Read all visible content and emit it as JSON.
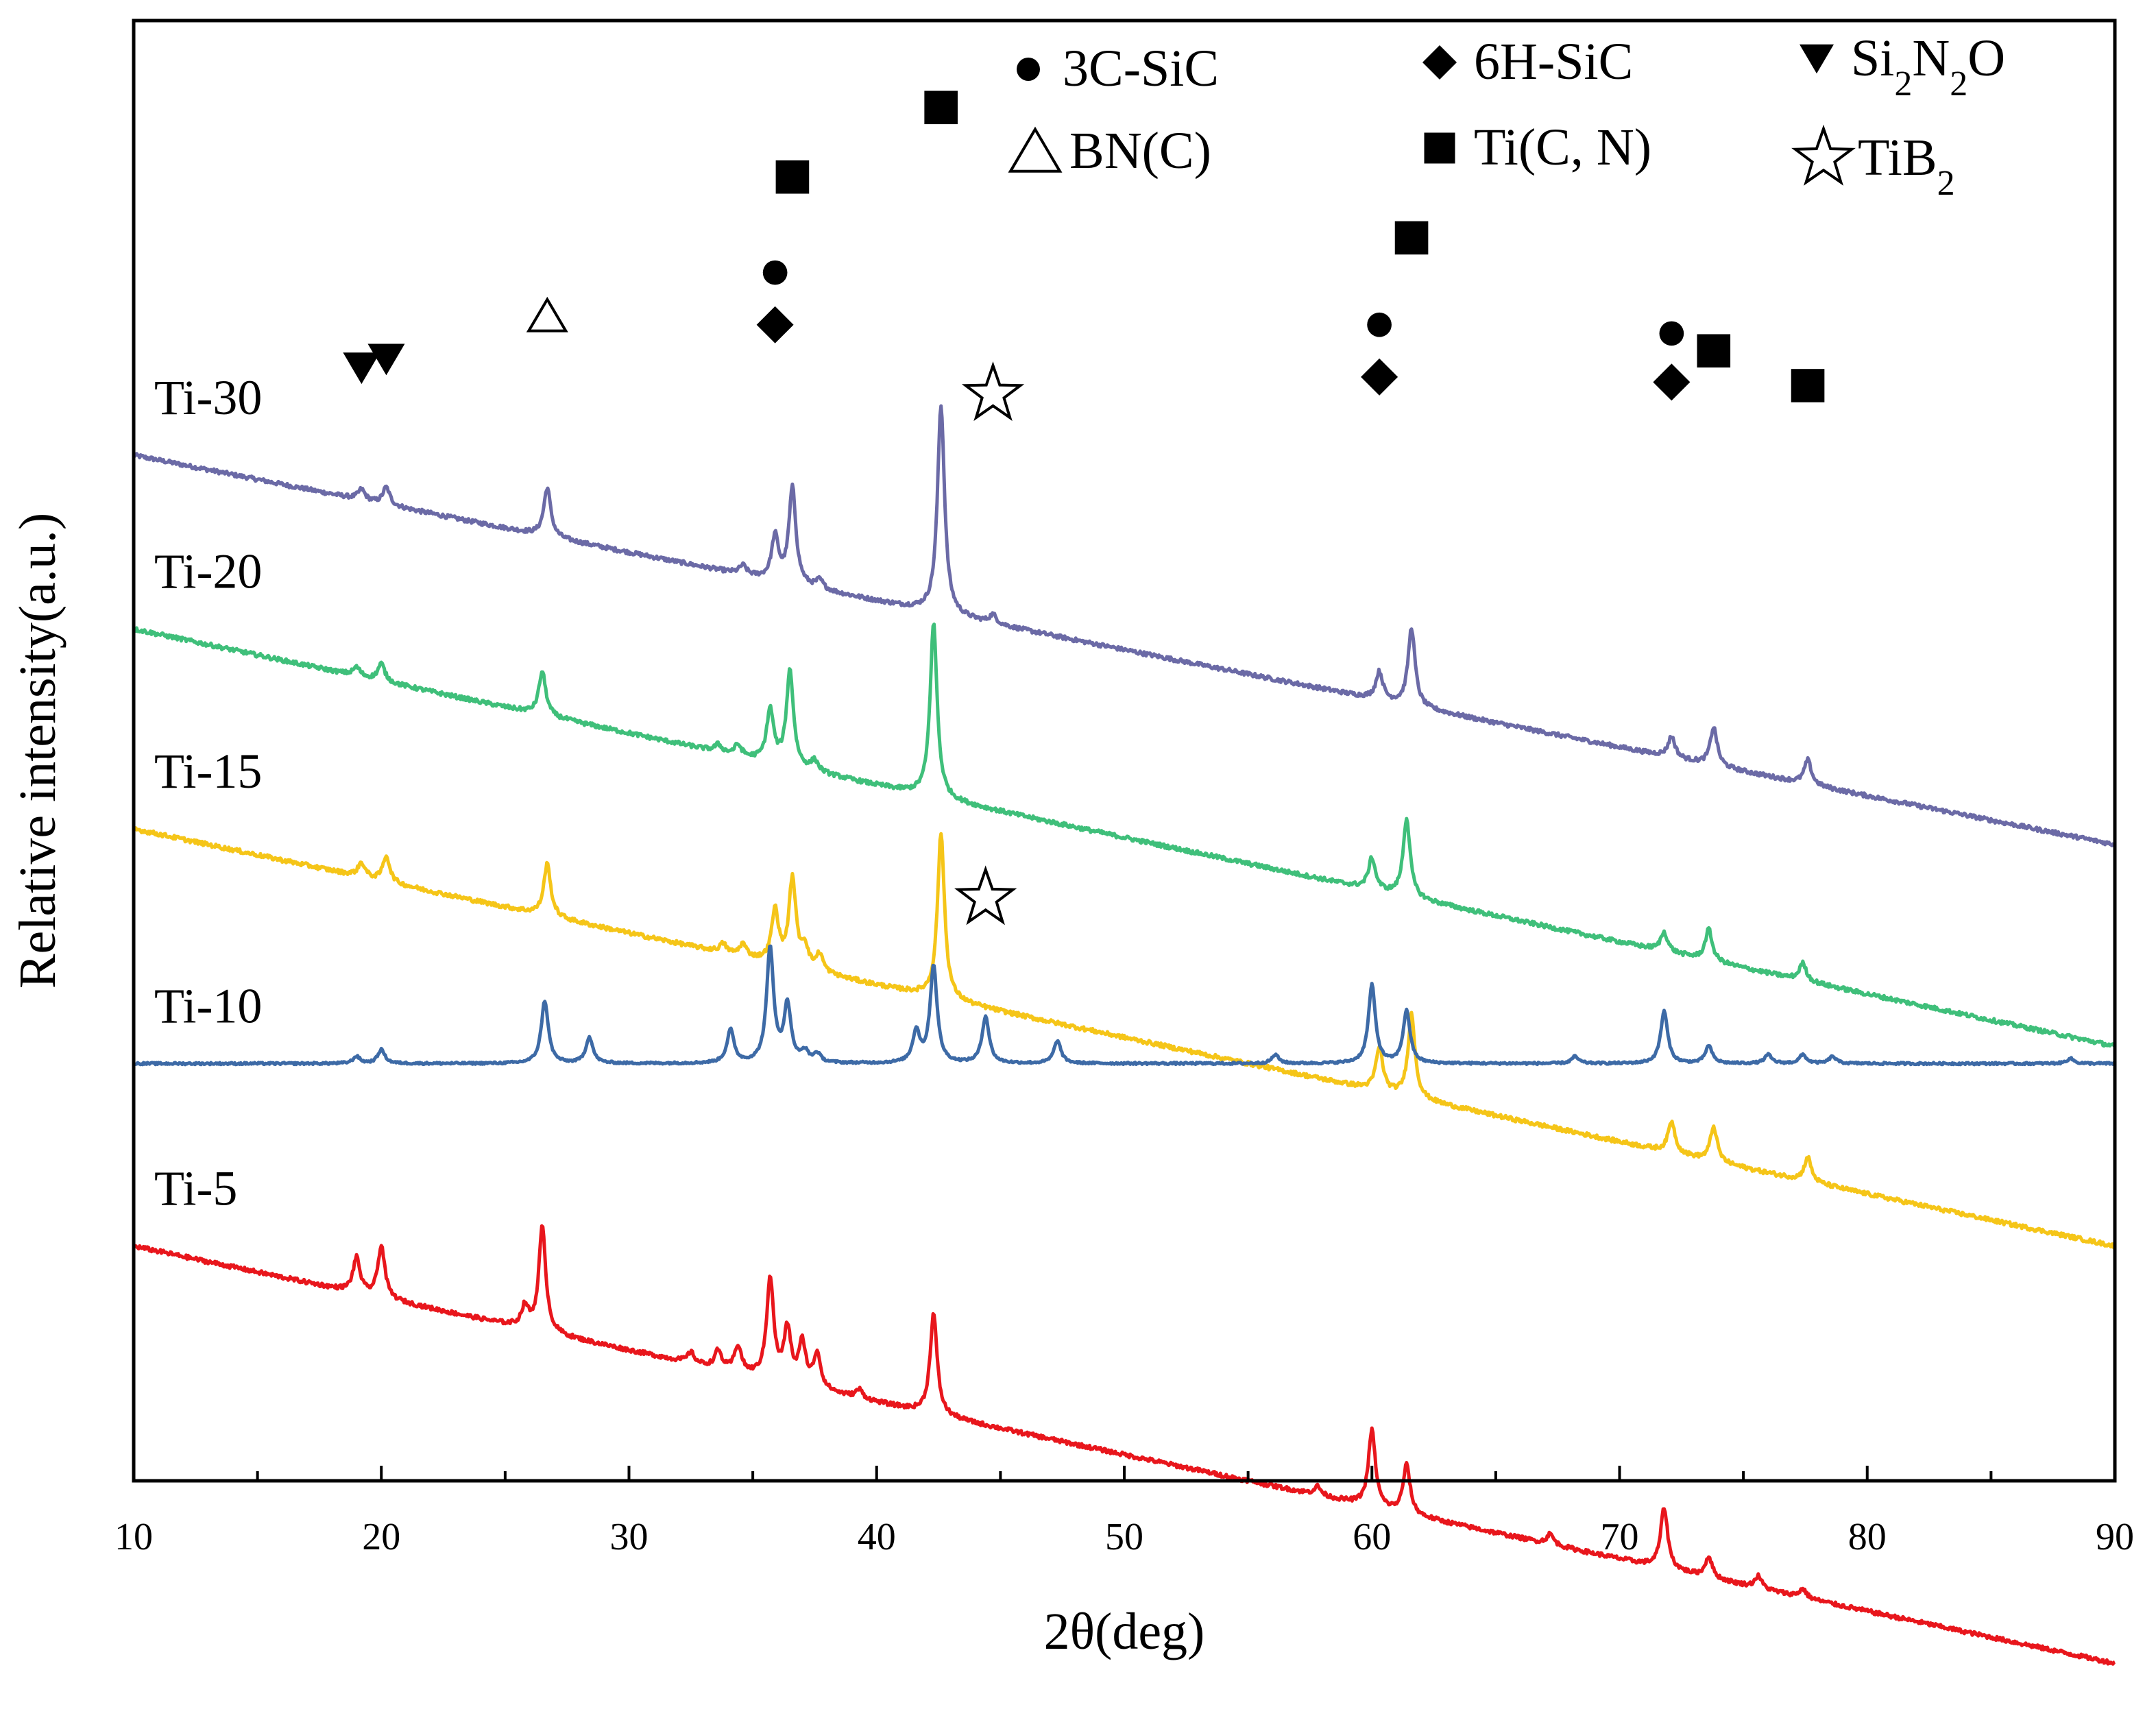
{
  "chart_data": {
    "type": "line",
    "title": "",
    "xlabel": "2θ(deg)",
    "ylabel": "Relative intensity(a.u.)",
    "xlim": [
      10,
      90
    ],
    "xticks": [
      10,
      20,
      30,
      40,
      50,
      60,
      70,
      80,
      90
    ],
    "y_ticks_shown": false,
    "grid": false,
    "legend": [
      {
        "symbol": "circle",
        "name": "3C-SiC"
      },
      {
        "symbol": "diamond",
        "name": "6H-SiC"
      },
      {
        "symbol": "triangle-down",
        "name": "Si",
        "sub1": "2",
        "mid": "N",
        "sub2": "2",
        "tail": "O"
      },
      {
        "symbol": "triangle-open",
        "name": "BN(C)"
      },
      {
        "symbol": "square",
        "name": "Ti(C, N)"
      },
      {
        "symbol": "star-open",
        "name": "TiB",
        "sub1": "2"
      }
    ],
    "series": [
      {
        "name": "Ti-30",
        "color": "#6b6aa6",
        "baseline": 5.9,
        "slope": -0.028,
        "noise": 0.012,
        "amplitude": 1.0,
        "peaks": [
          [
            19.2,
            0.06
          ],
          [
            20.2,
            0.1
          ],
          [
            26.7,
            0.28
          ],
          [
            34.6,
            0.05
          ],
          [
            35.9,
            0.25
          ],
          [
            36.6,
            0.55
          ],
          [
            37.7,
            0.05
          ],
          [
            42.6,
            1.2
          ],
          [
            44.7,
            0.05
          ],
          [
            60.3,
            0.16
          ],
          [
            61.6,
            0.45
          ],
          [
            72.1,
            0.12
          ],
          [
            73.8,
            0.22
          ],
          [
            77.6,
            0.14
          ]
        ]
      },
      {
        "name": "Ti-20",
        "color": "#3fbf7a",
        "baseline": 4.9,
        "slope": -0.03,
        "noise": 0.012,
        "amplitude": 1.0,
        "peaks": [
          [
            19.0,
            0.05
          ],
          [
            20.0,
            0.1
          ],
          [
            26.5,
            0.25
          ],
          [
            33.6,
            0.04
          ],
          [
            34.4,
            0.06
          ],
          [
            35.7,
            0.3
          ],
          [
            36.5,
            0.55
          ],
          [
            37.5,
            0.06
          ],
          [
            42.3,
            1.0
          ],
          [
            60.0,
            0.18
          ],
          [
            61.4,
            0.45
          ],
          [
            71.8,
            0.11
          ],
          [
            73.6,
            0.18
          ],
          [
            77.4,
            0.1
          ]
        ]
      },
      {
        "name": "Ti-15",
        "color": "#f5c518",
        "baseline": 3.75,
        "slope": -0.03,
        "noise": 0.012,
        "amplitude": 1.0,
        "peaks": [
          [
            19.2,
            0.08
          ],
          [
            20.2,
            0.15
          ],
          [
            26.7,
            0.3
          ],
          [
            33.8,
            0.05
          ],
          [
            34.6,
            0.07
          ],
          [
            35.9,
            0.3
          ],
          [
            36.6,
            0.5
          ],
          [
            37.1,
            0.12
          ],
          [
            37.7,
            0.1
          ],
          [
            42.6,
            0.95
          ],
          [
            60.3,
            0.25
          ],
          [
            61.6,
            0.48
          ],
          [
            72.1,
            0.18
          ],
          [
            73.8,
            0.2
          ],
          [
            77.6,
            0.14
          ]
        ]
      },
      {
        "name": "Ti-10",
        "color": "#3d6aa6",
        "baseline": 2.4,
        "slope": 0.0,
        "noise": 0.006,
        "amplitude": 1.0,
        "peaks": [
          [
            19.0,
            0.04
          ],
          [
            20.0,
            0.08
          ],
          [
            26.6,
            0.36
          ],
          [
            28.4,
            0.15
          ],
          [
            34.1,
            0.19
          ],
          [
            35.7,
            0.66
          ],
          [
            36.4,
            0.33
          ],
          [
            37.1,
            0.06
          ],
          [
            37.6,
            0.05
          ],
          [
            41.6,
            0.18
          ],
          [
            42.3,
            0.56
          ],
          [
            44.4,
            0.27
          ],
          [
            47.3,
            0.13
          ],
          [
            56.1,
            0.05
          ],
          [
            60.0,
            0.45
          ],
          [
            61.4,
            0.3
          ],
          [
            68.2,
            0.04
          ],
          [
            71.8,
            0.3
          ],
          [
            73.6,
            0.1
          ],
          [
            76.0,
            0.05
          ],
          [
            77.4,
            0.05
          ],
          [
            78.6,
            0.04
          ],
          [
            88.2,
            0.03
          ]
        ]
      },
      {
        "name": "Ti-5",
        "color": "#e8161c",
        "baseline": 1.35,
        "slope": -0.03,
        "noise": 0.012,
        "amplitude": 1.0,
        "peaks": [
          [
            19.0,
            0.2
          ],
          [
            20.0,
            0.3
          ],
          [
            25.8,
            0.12
          ],
          [
            26.5,
            0.6
          ],
          [
            32.5,
            0.06
          ],
          [
            33.6,
            0.1
          ],
          [
            34.4,
            0.15
          ],
          [
            35.7,
            0.58
          ],
          [
            36.4,
            0.3
          ],
          [
            37.0,
            0.24
          ],
          [
            37.6,
            0.2
          ],
          [
            39.3,
            0.05
          ],
          [
            42.3,
            0.58
          ],
          [
            57.8,
            0.05
          ],
          [
            60.0,
            0.44
          ],
          [
            61.4,
            0.28
          ],
          [
            67.2,
            0.06
          ],
          [
            71.8,
            0.35
          ],
          [
            73.6,
            0.12
          ],
          [
            75.6,
            0.07
          ],
          [
            77.4,
            0.05
          ]
        ]
      }
    ],
    "annotations": [
      {
        "symbol": "triangle-down",
        "x": 19.2,
        "y": 6.4
      },
      {
        "symbol": "triangle-down",
        "x": 20.2,
        "y": 6.45
      },
      {
        "symbol": "triangle-open",
        "x": 26.7,
        "y": 6.7
      },
      {
        "symbol": "diamond",
        "x": 35.9,
        "y": 6.65
      },
      {
        "symbol": "circle",
        "x": 35.9,
        "y": 6.95
      },
      {
        "symbol": "square",
        "x": 36.6,
        "y": 7.5
      },
      {
        "symbol": "square",
        "x": 42.6,
        "y": 7.9
      },
      {
        "symbol": "star-open",
        "x": 44.7,
        "y": 6.25
      },
      {
        "symbol": "diamond",
        "x": 60.3,
        "y": 6.35
      },
      {
        "symbol": "circle",
        "x": 60.3,
        "y": 6.65
      },
      {
        "symbol": "square",
        "x": 61.6,
        "y": 7.15
      },
      {
        "symbol": "circle",
        "x": 72.1,
        "y": 6.6
      },
      {
        "symbol": "diamond",
        "x": 72.1,
        "y": 6.32
      },
      {
        "symbol": "square",
        "x": 73.8,
        "y": 6.5
      },
      {
        "symbol": "square",
        "x": 77.6,
        "y": 6.3
      },
      {
        "symbol": "star-open",
        "x": 44.4,
        "y": 3.35
      }
    ]
  }
}
